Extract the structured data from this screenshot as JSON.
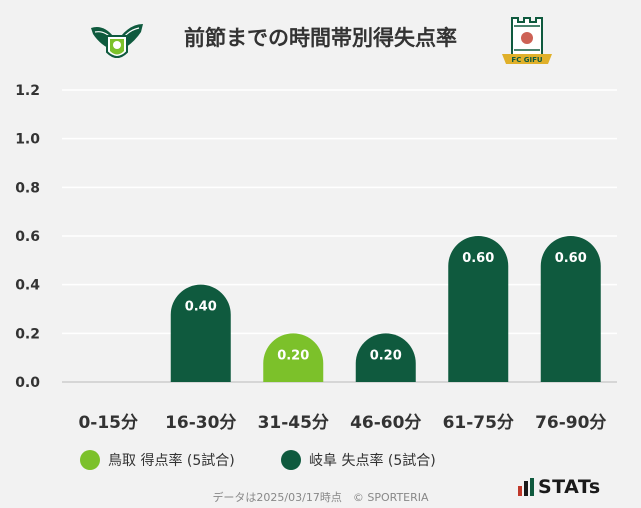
{
  "title": "前節までの時間帯別得失点率",
  "legend": {
    "tottori": "鳥取 得点率 (5試合)",
    "gifu": "岐阜 失点率 (5試合)"
  },
  "footer": "データは2025/03/17時点　© SPORTERIA",
  "brand": "STATs",
  "logos": {
    "left": "tottori-emblem",
    "right": "fc-gifu-emblem",
    "right_text": "FC GIFU"
  },
  "colors": {
    "tottori": "#7cc12a",
    "gifu": "#0f5a3e",
    "grid": "#ffffff",
    "axis": "#cccccc"
  },
  "chart_data": {
    "type": "bar",
    "title": "前節までの時間帯別得失点率",
    "categories": [
      "0-15分",
      "16-30分",
      "31-45分",
      "46-60分",
      "61-75分",
      "76-90分"
    ],
    "ylim": [
      0,
      1.2
    ],
    "yticks": [
      "0.0",
      "0.2",
      "0.4",
      "0.6",
      "0.8",
      "1.0",
      "1.2"
    ],
    "grid": true,
    "series": [
      {
        "name": "鳥取 得点率 (5試合)",
        "team": "tottori",
        "values": [
          0,
          0,
          0.2,
          0,
          0,
          0
        ]
      },
      {
        "name": "岐阜 失点率 (5試合)",
        "team": "gifu",
        "values": [
          0,
          0.4,
          0,
          0.2,
          0.6,
          0.6
        ]
      }
    ],
    "bar_team": [
      "none",
      "gifu",
      "tottori",
      "gifu",
      "gifu",
      "gifu"
    ],
    "bar_labels": [
      "",
      "0.40",
      "0.20",
      "0.20",
      "0.60",
      "0.60"
    ]
  }
}
